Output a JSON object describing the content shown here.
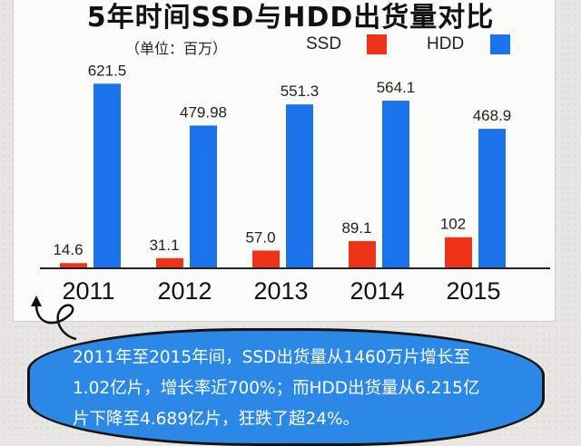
{
  "chart_data": {
    "type": "bar",
    "title": "5年时间SSD与HDD出货量对比",
    "unit_note": "（单位：百万）",
    "categories": [
      "2011",
      "2012",
      "2013",
      "2014",
      "2015"
    ],
    "series": [
      {
        "name": "SSD",
        "color": "#ee3318",
        "values": [
          14.6,
          31.1,
          57.0,
          89.1,
          102
        ],
        "labels": [
          "14.6",
          "31.1",
          "57.0",
          "89.1",
          "102"
        ]
      },
      {
        "name": "HDD",
        "color": "#1a73ea",
        "values": [
          621.5,
          479.98,
          551.3,
          564.1,
          468.9
        ],
        "labels": [
          "621.5",
          "479.98",
          "551.3",
          "564.1",
          "468.9"
        ]
      }
    ],
    "xlabel": "",
    "ylabel": "",
    "ylim": [
      0,
      700
    ],
    "grid": false,
    "legend": "top-right"
  },
  "note": {
    "lines": [
      "2011年至2015年间，SSD出货量从1460万片增长至",
      "1.02亿片，增长率近700%；而HDD出货量从6.215亿",
      "片下降至4.689亿片，狂跌了超24%。"
    ]
  }
}
